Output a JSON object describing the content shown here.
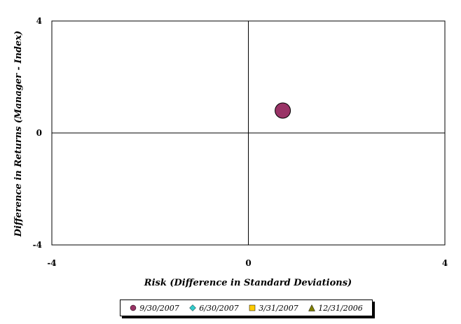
{
  "chart_data": {
    "type": "scatter",
    "title": "",
    "xlabel": "Risk (Difference in Standard Deviations)",
    "ylabel": "Difference in Returns (Manager - Index)",
    "xlim": [
      -4,
      4
    ],
    "ylim": [
      -4,
      4
    ],
    "x_ticks": [
      "-4",
      "0",
      "4"
    ],
    "y_ticks": [
      "-4",
      "0",
      "4"
    ],
    "grid": false,
    "legend_position": "bottom",
    "series": [
      {
        "name": "9/30/2007",
        "marker": "circle",
        "color": "#993366",
        "points": [
          {
            "x": 0.7,
            "y": 0.8
          }
        ]
      },
      {
        "name": "6/30/2007",
        "marker": "diamond",
        "color": "#33CCCC",
        "points": []
      },
      {
        "name": "3/31/2007",
        "marker": "square",
        "color": "#FFCC00",
        "points": []
      },
      {
        "name": "12/31/2006",
        "marker": "triangle",
        "color": "#808000",
        "points": []
      }
    ]
  }
}
